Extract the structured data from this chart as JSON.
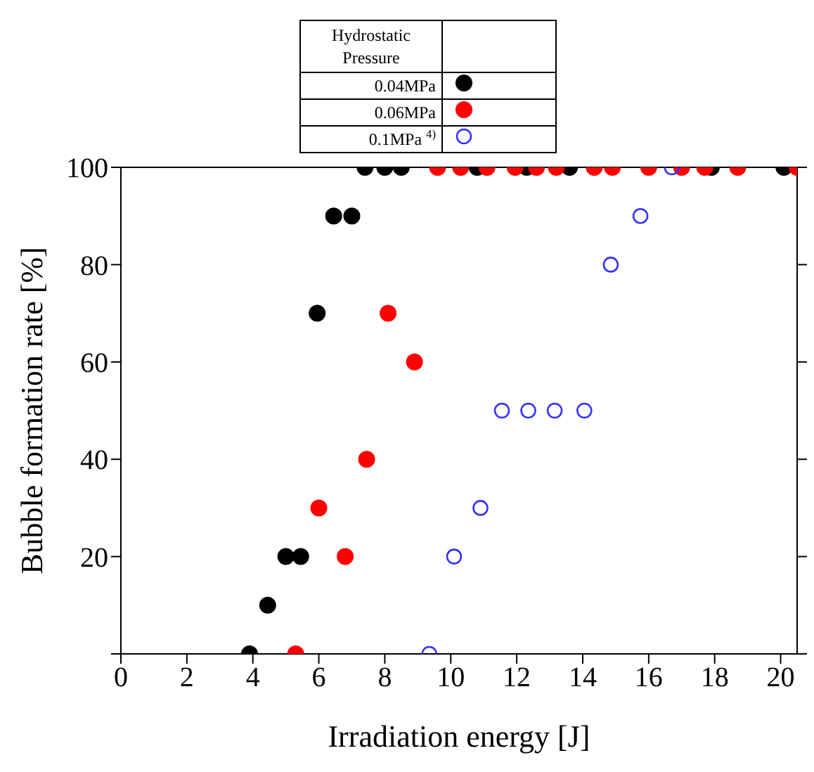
{
  "chart_data": {
    "type": "scatter",
    "xlabel": "Irradiation energy [J]",
    "ylabel": "Bubble formation rate [%]",
    "legend_title": "Hydrostatic Pressure",
    "legend": "top",
    "grid": false,
    "marker": "circle",
    "xlim": [
      0,
      20.5
    ],
    "xticks": [
      0,
      2,
      4,
      6,
      8,
      10,
      12,
      14,
      16,
      18,
      20
    ],
    "ylim": [
      0,
      100
    ],
    "yticks": [
      {
        "value": 0,
        "label": null
      },
      20,
      40,
      60,
      80,
      100
    ],
    "series": [
      {
        "name": "0.04MPa",
        "color": "#000000",
        "x": [
          3.9,
          4.45,
          5.0,
          5.45,
          5.95,
          6.45,
          7.0,
          7.4,
          8.0,
          8.5,
          10.8,
          12.3,
          13.6,
          17.9,
          20.1
        ],
        "values": [
          0,
          10,
          20,
          20,
          70,
          90,
          90,
          100,
          100,
          100,
          100,
          100,
          100,
          100,
          100
        ]
      },
      {
        "name": "0.06MPa",
        "color": "#ff0000",
        "x": [
          5.3,
          6.0,
          6.8,
          7.45,
          8.1,
          8.9,
          9.6,
          10.3,
          11.1,
          11.95,
          12.6,
          13.2,
          14.35,
          14.9,
          16.0,
          17.0,
          17.7,
          18.7,
          20.5
        ],
        "values": [
          0,
          30,
          20,
          40,
          70,
          60,
          100,
          100,
          100,
          100,
          100,
          100,
          100,
          100,
          100,
          100,
          100,
          100,
          100
        ]
      },
      {
        "name": "0.1MPa $^{4)}$",
        "color": "#3333ff",
        "marker": "open circle",
        "x": [
          9.35,
          10.1,
          10.9,
          11.55,
          12.35,
          13.15,
          14.05,
          14.85,
          15.75,
          16.7
        ],
        "values": [
          0,
          20,
          30,
          50,
          50,
          50,
          50,
          80,
          90,
          100
        ]
      }
    ]
  }
}
